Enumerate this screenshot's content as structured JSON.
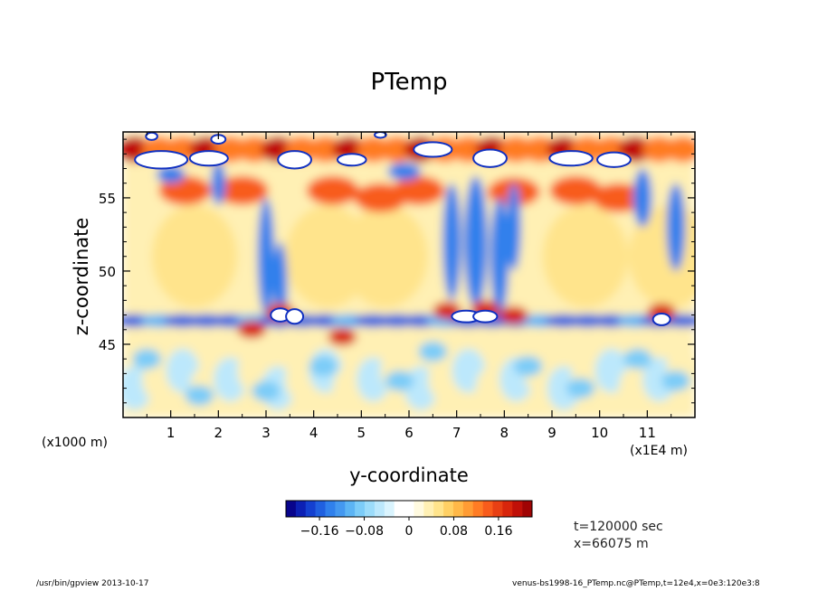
{
  "chart_data": {
    "type": "heatmap",
    "title": "PTemp",
    "xlabel": "y-coordinate",
    "ylabel": "z-coordinate",
    "x_unit": "(x1E4 m)",
    "y_unit": "(x1000 m)",
    "xlim": [
      0,
      12
    ],
    "ylim": [
      40,
      59.5
    ],
    "x_ticks": [
      1,
      2,
      3,
      4,
      5,
      6,
      7,
      8,
      9,
      10,
      11
    ],
    "y_ticks": [
      45,
      50,
      55
    ],
    "colorbar": {
      "range": [
        -0.22,
        0.22
      ],
      "tick_values": [
        -0.16,
        -0.08,
        0,
        0.08,
        0.16
      ],
      "tick_labels": [
        "-0.16",
        "-0.08",
        "0",
        "0.08",
        "0.16"
      ],
      "colors": [
        "#08048c",
        "#0c20b4",
        "#1440d0",
        "#2060e0",
        "#3080ec",
        "#4498f0",
        "#5cb4f4",
        "#7cccf8",
        "#9cdcfa",
        "#bce8fc",
        "#daf4fe",
        "#ffffff",
        "#ffffff",
        "#fffae0",
        "#fff0b4",
        "#ffe48c",
        "#ffd064",
        "#ffb848",
        "#ff9c34",
        "#ff7c24",
        "#f85c1c",
        "#e84014",
        "#d8260c",
        "#c01008",
        "#a00404"
      ]
    },
    "annotations": {
      "time": "t=120000 sec",
      "position": "x=66075 m"
    }
  },
  "footer": {
    "left": "/usr/bin/gpview   2013-10-17",
    "right": "venus-bs1998-16_PTemp.nc@PTemp,t=12e4,x=0e3:120e3:8"
  }
}
